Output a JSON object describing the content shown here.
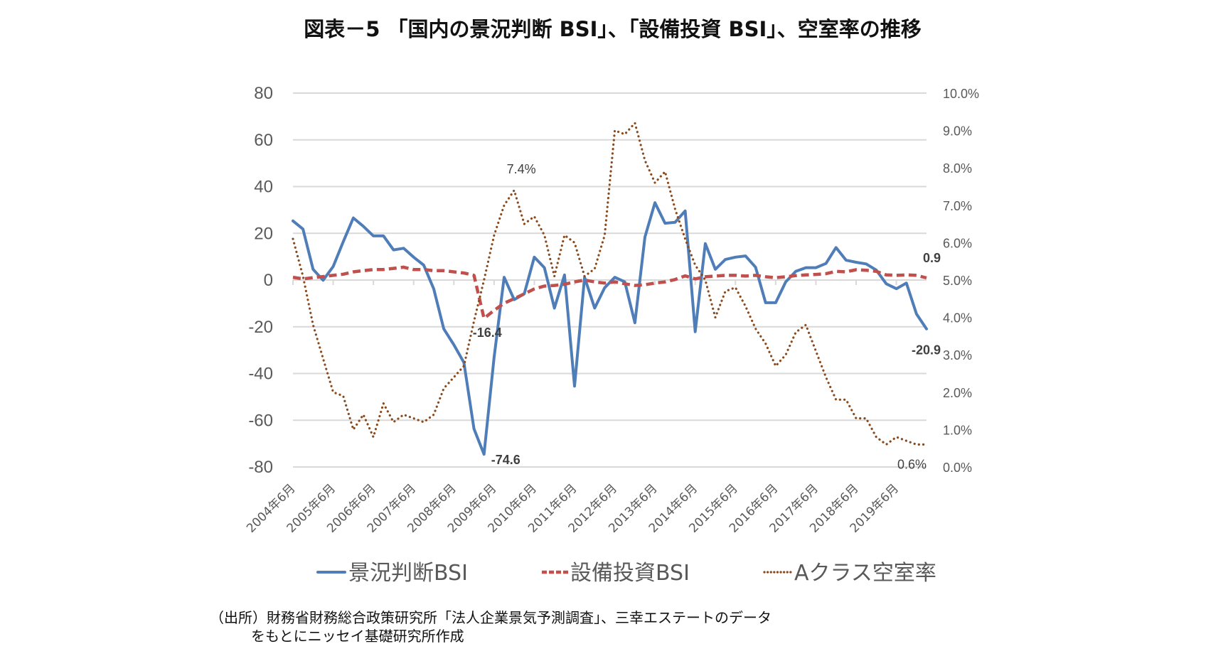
{
  "title": "図表－5 「国内の景況判断 BSI」、「設備投資 BSI」、空室率の推移",
  "source": {
    "line1": "（出所）財務省財務総合政策研究所「法人企業景気予測調査」、三幸エステートのデータ",
    "line2": "をもとにニッセイ基礎研究所作成"
  },
  "colors": {
    "bsi_business": "#4F7DB8",
    "bsi_capex": "#C0504D",
    "vacancy": "#8B4A1C",
    "grid": "#D9D9D9",
    "tick_text": "#595959"
  },
  "chart_data": {
    "type": "line",
    "title": "図表－5 「国内の景況判断 BSI」、「設備投資 BSI」、空室率の推移",
    "xlabel": "",
    "ylabel": "",
    "y2label": "",
    "frequency": "quarterly",
    "x_start": "2004年6月",
    "x_count": 64,
    "x_tick_labels": [
      "2004年6月",
      "2005年6月",
      "2006年6月",
      "2007年6月",
      "2008年6月",
      "2009年6月",
      "2010年6月",
      "2011年6月",
      "2012年6月",
      "2013年6月",
      "2014年6月",
      "2015年6月",
      "2016年6月",
      "2017年6月",
      "2018年6月",
      "2019年6月"
    ],
    "x_tick_every": 4,
    "ylim": [
      -80,
      80
    ],
    "y_ticks": [
      80,
      60,
      40,
      20,
      0,
      -20,
      -40,
      -60,
      -80
    ],
    "y2lim": [
      0,
      10
    ],
    "y2_ticks": [
      "10.0%",
      "9.0%",
      "8.0%",
      "7.0%",
      "6.0%",
      "5.0%",
      "4.0%",
      "3.0%",
      "2.0%",
      "1.0%",
      "0.0%"
    ],
    "grid": true,
    "legend_position": "bottom",
    "series": [
      {
        "name": "景況判断BSI",
        "axis": "left",
        "style": "solid",
        "values": [
          25.3,
          21.8,
          4.6,
          -0.1,
          5.8,
          16.4,
          26.6,
          23.0,
          18.9,
          18.9,
          12.9,
          13.6,
          9.8,
          6.4,
          -3.8,
          -20.9,
          -27.7,
          -35.3,
          -63.7,
          -74.6,
          -33.0,
          1.2,
          -8.4,
          -5.9,
          9.8,
          5.3,
          -12.0,
          2.2,
          -45.4,
          1.2,
          -12.0,
          -3.3,
          1.2,
          -0.8,
          -18.3,
          18.4,
          33.1,
          24.3,
          24.7,
          29.6,
          -22.1,
          15.6,
          4.6,
          8.8,
          9.8,
          10.3,
          5.5,
          -9.7,
          -9.7,
          -0.8,
          3.7,
          5.3,
          5.3,
          7.1,
          13.9,
          8.5,
          7.6,
          6.9,
          4.3,
          -1.6,
          -3.7,
          -1.3,
          -14.5,
          -20.9
        ]
      },
      {
        "name": "設備投資BSI",
        "axis": "left",
        "style": "dashed",
        "values": [
          1.2,
          0.5,
          1.0,
          1.5,
          2.0,
          2.5,
          3.5,
          4.0,
          4.5,
          4.5,
          5.0,
          5.5,
          4.5,
          4.5,
          4.0,
          4.0,
          3.5,
          3.0,
          2.0,
          -16.4,
          -13.0,
          -9.9,
          -8.0,
          -5.9,
          -3.8,
          -2.6,
          -2.3,
          -1.8,
          -0.8,
          0.0,
          -0.8,
          -1.3,
          -0.8,
          -1.6,
          -2.3,
          -2.0,
          -1.3,
          -0.8,
          0.2,
          1.8,
          0.5,
          1.4,
          1.7,
          2.0,
          2.0,
          1.7,
          2.0,
          1.4,
          1.0,
          1.4,
          1.9,
          2.2,
          2.4,
          2.7,
          3.7,
          3.5,
          4.4,
          4.2,
          3.7,
          2.2,
          2.0,
          2.2,
          2.0,
          0.9
        ]
      },
      {
        "name": "Aクラス空室率",
        "axis": "right",
        "unit": "%",
        "style": "dotted",
        "values": [
          6.1,
          5.1,
          3.8,
          2.9,
          2.0,
          1.9,
          1.0,
          1.4,
          0.8,
          1.7,
          1.2,
          1.4,
          1.3,
          1.2,
          1.4,
          2.1,
          2.4,
          2.7,
          3.9,
          5.0,
          6.2,
          7.0,
          7.4,
          6.5,
          6.7,
          6.2,
          5.1,
          6.2,
          6.0,
          5.1,
          5.3,
          6.2,
          9.0,
          8.9,
          9.2,
          8.2,
          7.6,
          7.9,
          6.9,
          6.1,
          5.4,
          5.0,
          4.0,
          4.7,
          4.8,
          4.3,
          3.7,
          3.3,
          2.7,
          3.0,
          3.6,
          3.8,
          3.1,
          2.4,
          1.8,
          1.8,
          1.3,
          1.3,
          0.8,
          0.6,
          0.8,
          0.7,
          0.6,
          0.6
        ]
      }
    ],
    "annotations": [
      {
        "text": "-74.6",
        "series": "景況判断BSI",
        "index": 19,
        "bold": true
      },
      {
        "text": "-16.4",
        "series": "設備投資BSI",
        "index": 19,
        "bold": true
      },
      {
        "text": "7.4%",
        "series": "Aクラス空室率",
        "index": 22,
        "bold": false
      },
      {
        "text": "0.9",
        "series": "設備投資BSI",
        "index": 63,
        "bold": true
      },
      {
        "text": "-20.9",
        "series": "景況判断BSI",
        "index": 63,
        "bold": true
      },
      {
        "text": "0.6%",
        "series": "Aクラス空室率",
        "index": 63,
        "bold": false
      }
    ],
    "legend": [
      "景況判断BSI",
      "設備投資BSI",
      "Aクラス空室率"
    ]
  }
}
